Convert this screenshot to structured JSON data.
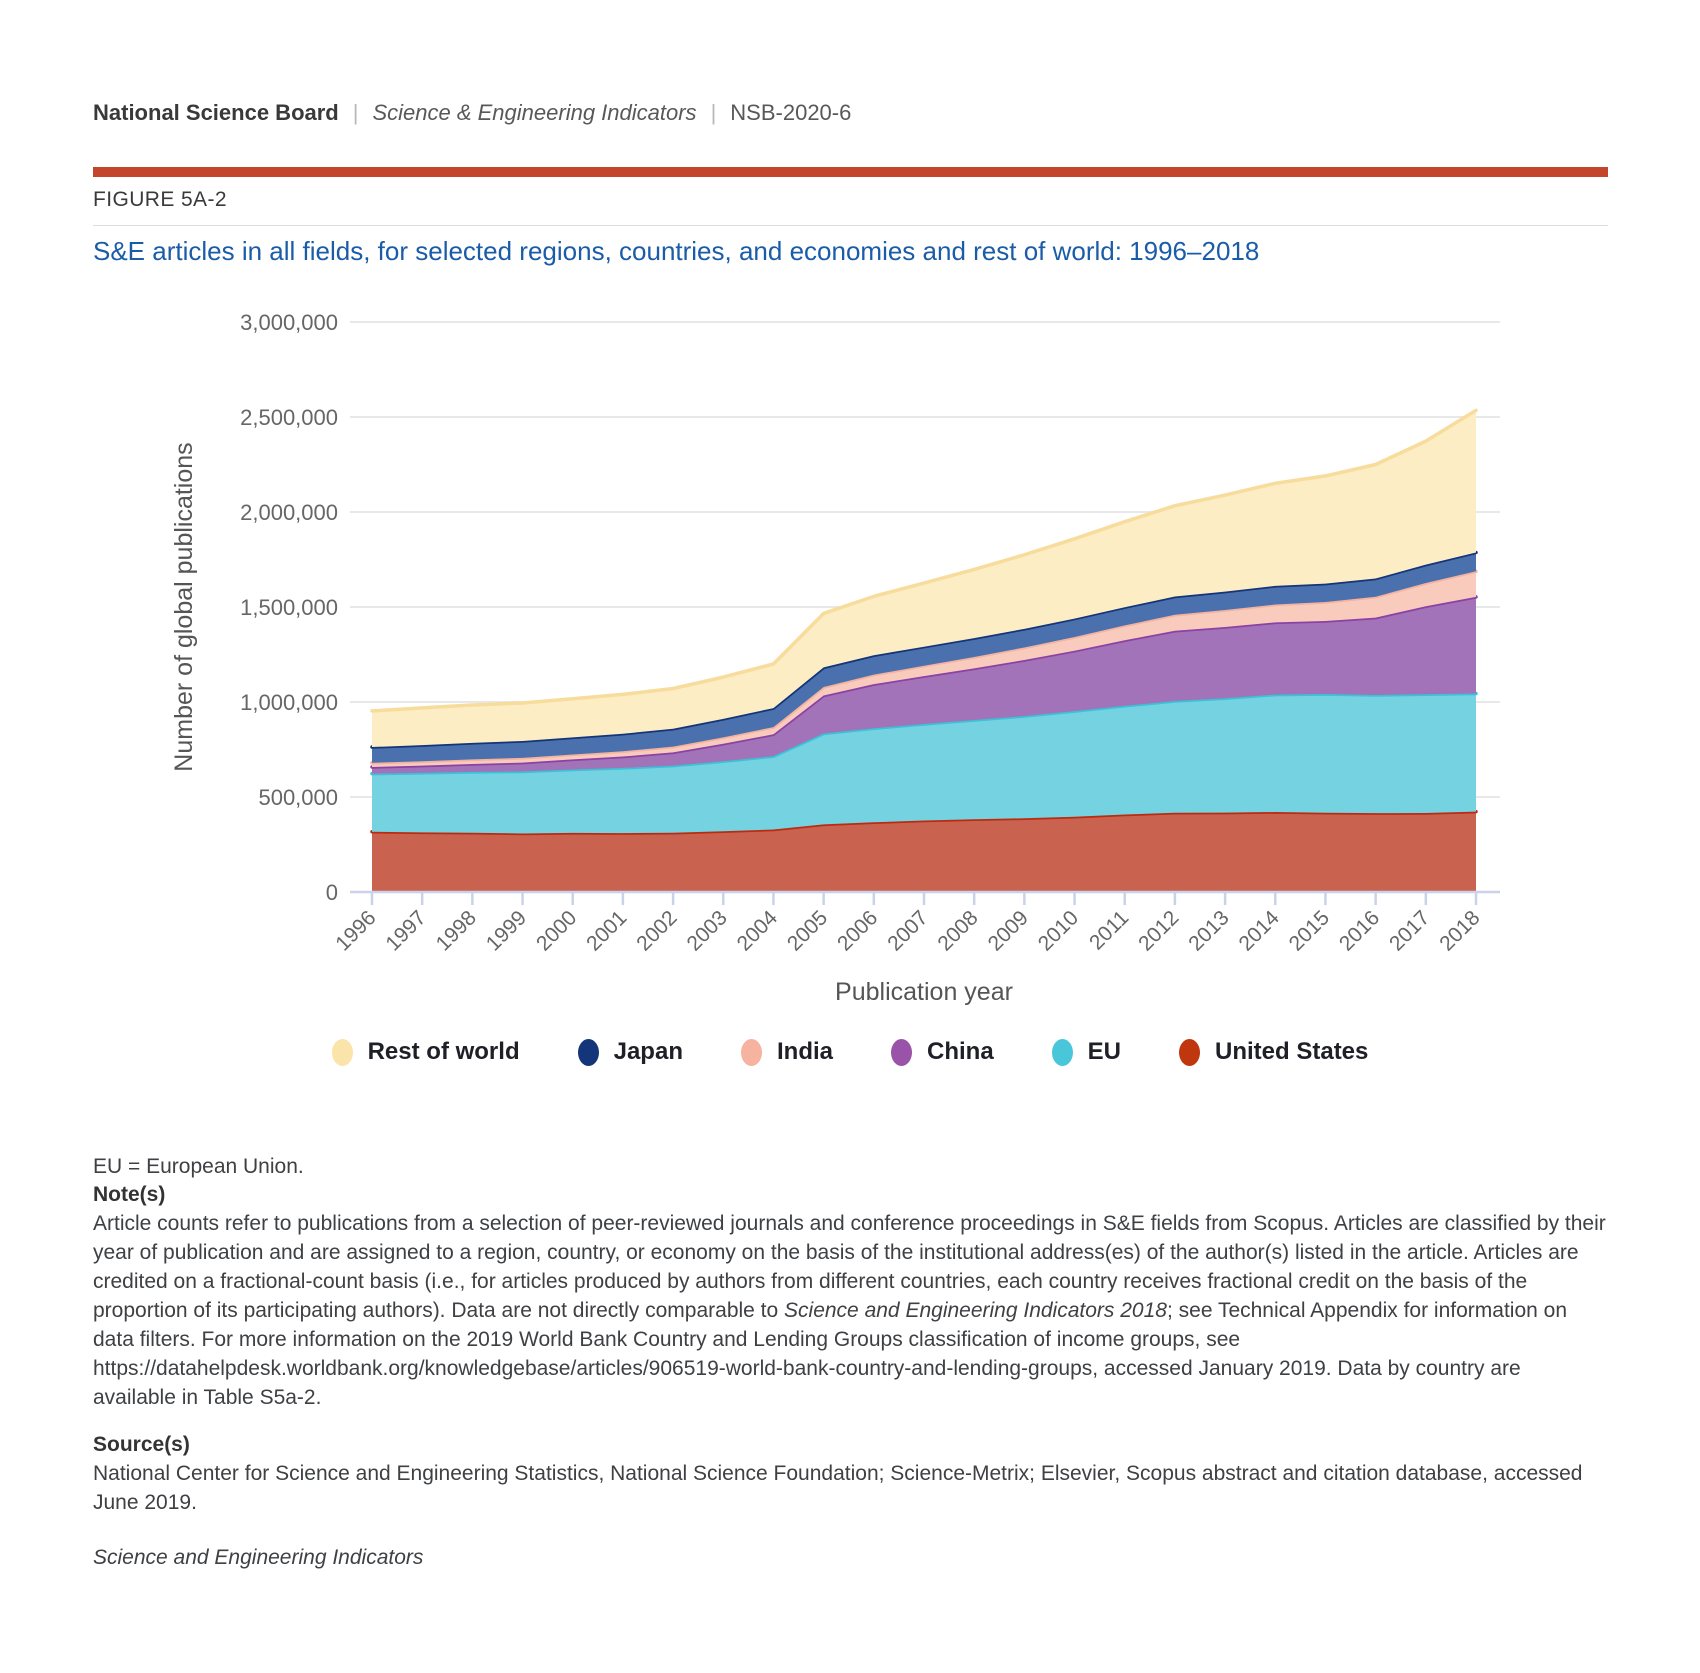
{
  "header": {
    "org": "National Science Board",
    "separator": "|",
    "publication": "Science & Engineering Indicators",
    "report_id": "NSB-2020-6"
  },
  "figure": {
    "label": "FIGURE 5A-2",
    "title": "S&E articles in all fields, for selected regions, countries, and economies and rest of world: 1996–2018"
  },
  "chart_data": {
    "type": "area",
    "stacked": true,
    "title": "S&E articles in all fields, for selected regions, countries, and economies and rest of world: 1996–2018",
    "xlabel": "Publication year",
    "ylabel": "Number of global publications",
    "ylim": [
      0,
      3000000
    ],
    "ytick_interval": 500000,
    "ytick_labels": [
      "0",
      "500,000",
      "1,000,000",
      "1,500,000",
      "2,000,000",
      "2,500,000",
      "3,000,000"
    ],
    "grid": true,
    "legend_position": "bottom",
    "x": [
      1996,
      1997,
      1998,
      1999,
      2000,
      2001,
      2002,
      2003,
      2004,
      2005,
      2006,
      2007,
      2008,
      2009,
      2010,
      2011,
      2012,
      2013,
      2014,
      2015,
      2016,
      2017,
      2018
    ],
    "series": [
      {
        "name": "United States",
        "fill": "#C9624E",
        "stroke": "#BB2B10",
        "legend_color": "#C0360F",
        "values": [
          317000,
          314000,
          312000,
          308000,
          311000,
          310000,
          312000,
          320000,
          329000,
          356000,
          367000,
          376000,
          383000,
          388000,
          396000,
          408000,
          417000,
          418000,
          421000,
          417000,
          415000,
          416000,
          423000
        ]
      },
      {
        "name": "EU",
        "fill": "#74D2E1",
        "stroke": "#3BC2D7",
        "legend_color": "#4AC6DA",
        "values": [
          306000,
          313000,
          320000,
          326000,
          334000,
          343000,
          353000,
          368000,
          386000,
          478000,
          495000,
          508000,
          522000,
          538000,
          556000,
          572000,
          588000,
          602000,
          618000,
          625000,
          622000,
          625000,
          622000
        ]
      },
      {
        "name": "China",
        "fill": "#A273B8",
        "stroke": "#8A42A4",
        "legend_color": "#9953A8",
        "values": [
          35000,
          38000,
          42000,
          47000,
          53000,
          60000,
          70000,
          92000,
          115000,
          200000,
          232000,
          252000,
          272000,
          295000,
          318000,
          345000,
          370000,
          375000,
          380000,
          384000,
          407000,
          463000,
          508000
        ]
      },
      {
        "name": "India",
        "fill": "#F9CBBD",
        "stroke": "#F4B2A0",
        "legend_color": "#F5B3A0",
        "values": [
          22000,
          23000,
          24000,
          25000,
          26000,
          28000,
          30000,
          34000,
          38000,
          45000,
          50000,
          55000,
          60000,
          66000,
          72000,
          78000,
          84000,
          89000,
          94000,
          100000,
          110000,
          122000,
          135000
        ]
      },
      {
        "name": "Japan",
        "fill": "#4A70AD",
        "stroke": "#143579",
        "legend_color": "#143579",
        "values": [
          83000,
          85000,
          87000,
          89000,
          90000,
          92000,
          94000,
          97000,
          100000,
          103000,
          102000,
          100000,
          99000,
          98000,
          97000,
          96000,
          96000,
          97000,
          98000,
          97000,
          96000,
          97000,
          99000
        ]
      },
      {
        "name": "Rest of world",
        "fill": "#FCEDC4",
        "stroke": "#F7DC9B",
        "legend_color": "#FBE4A9",
        "values": [
          190000,
          196000,
          199000,
          200000,
          203000,
          207000,
          212000,
          220000,
          232000,
          284000,
          310000,
          335000,
          362000,
          390000,
          420000,
          450000,
          478000,
          508000,
          540000,
          567000,
          600000,
          650000,
          748000
        ]
      }
    ],
    "legend_order": [
      "Rest of world",
      "Japan",
      "India",
      "China",
      "EU",
      "United States"
    ],
    "colors": {
      "gridline": "#E8E8E8",
      "axis": "#C9D2E8",
      "tick_text": "#666666",
      "axis_title": "#555555"
    }
  },
  "footnotes": {
    "eu_note": "EU = European Union.",
    "notes_heading": "Note(s)",
    "notes_runs": [
      {
        "text": "Article counts refer to publications from a selection of peer-reviewed journals and conference proceedings in S&E fields from Scopus. Articles are classified by their year of publication and are assigned to a region, country, or economy on the basis of the institutional address(es) of the author(s) listed in the article. Articles are credited on a fractional-count basis (i.e., for articles produced by authors from different countries, each country receives fractional credit on the basis of the proportion of its participating authors). Data are not directly comparable to "
      },
      {
        "text": "Science and Engineering Indicators 2018",
        "italic": true
      },
      {
        "text": "; see Technical Appendix for information on data filters. For more information on the 2019 World Bank Country and Lending Groups classification of income groups, see https://datahelpdesk.worldbank.org/knowledgebase/articles/906519-world-bank-country-and-lending-groups, accessed January 2019. Data by country are available in Table S5a-2."
      }
    ],
    "sources_heading": "Source(s)",
    "sources_text": "National Center for Science and Engineering Statistics, National Science Foundation; Science-Metrix; Elsevier, Scopus abstract and citation database, accessed June 2019.",
    "footer_italic": "Science and Engineering Indicators"
  }
}
